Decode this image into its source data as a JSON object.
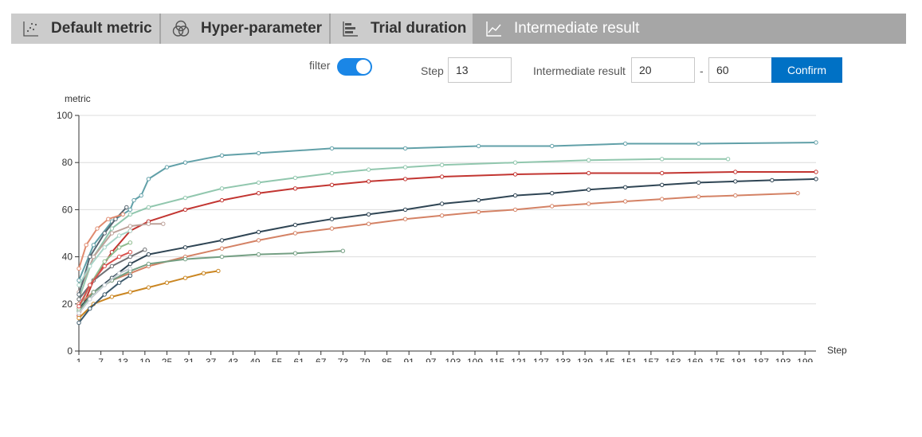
{
  "tabs": [
    {
      "label": "Default metric",
      "icon": "scatter-icon",
      "active": false
    },
    {
      "label": "Hyper-parameter",
      "icon": "circles-icon",
      "active": false
    },
    {
      "label": "Trial duration",
      "icon": "bars-icon",
      "active": false
    },
    {
      "label": "Intermediate result",
      "icon": "line-chart-icon",
      "active": true
    }
  ],
  "controls": {
    "filter_label": "filter",
    "filter_on": true,
    "step_label": "Step",
    "step_value": "13",
    "range_label": "Intermediate result",
    "range_min": "20",
    "range_sep": "-",
    "range_max": "60",
    "confirm_label": "Confirm"
  },
  "colors": {
    "accent": "#1a86e6",
    "confirm": "#0071c5",
    "tab_inactive": "#cccccc",
    "tab_active": "#a6a6a6"
  },
  "chart_data": {
    "type": "line",
    "ylabel": "metric",
    "xlabel": "Step",
    "xlim": [
      1,
      202
    ],
    "ylim": [
      0,
      100
    ],
    "yticks": [
      0,
      20,
      40,
      60,
      80,
      100
    ],
    "xticks": [
      1,
      7,
      13,
      19,
      25,
      31,
      37,
      43,
      49,
      55,
      61,
      67,
      73,
      79,
      85,
      91,
      97,
      103,
      109,
      115,
      121,
      127,
      133,
      139,
      145,
      151,
      157,
      163,
      169,
      175,
      181,
      187,
      193,
      199
    ],
    "grid": true,
    "series": [
      {
        "color": "#61a0a8",
        "points": [
          [
            1,
            30
          ],
          [
            5,
            45
          ],
          [
            10,
            55
          ],
          [
            15,
            60
          ],
          [
            16,
            64
          ],
          [
            18,
            66
          ],
          [
            20,
            73
          ],
          [
            25,
            78
          ],
          [
            30,
            80
          ],
          [
            40,
            83
          ],
          [
            50,
            84
          ],
          [
            70,
            86
          ],
          [
            90,
            86
          ],
          [
            110,
            87
          ],
          [
            130,
            87
          ],
          [
            150,
            88
          ],
          [
            170,
            88
          ],
          [
            202,
            88.5
          ]
        ]
      },
      {
        "color": "#91c7ae",
        "points": [
          [
            1,
            22
          ],
          [
            5,
            40
          ],
          [
            10,
            52
          ],
          [
            15,
            58
          ],
          [
            20,
            61
          ],
          [
            30,
            65
          ],
          [
            40,
            69
          ],
          [
            50,
            71.5
          ],
          [
            60,
            73.5
          ],
          [
            70,
            75.5
          ],
          [
            80,
            77
          ],
          [
            90,
            78
          ],
          [
            100,
            79
          ],
          [
            120,
            80
          ],
          [
            140,
            81
          ],
          [
            160,
            81.5
          ],
          [
            178,
            81.5
          ]
        ]
      },
      {
        "color": "#c23531",
        "points": [
          [
            1,
            15
          ],
          [
            5,
            30
          ],
          [
            10,
            42
          ],
          [
            15,
            51
          ],
          [
            20,
            55
          ],
          [
            30,
            60
          ],
          [
            40,
            64
          ],
          [
            50,
            67
          ],
          [
            60,
            69
          ],
          [
            70,
            70.5
          ],
          [
            80,
            72
          ],
          [
            90,
            73
          ],
          [
            100,
            74
          ],
          [
            120,
            75
          ],
          [
            140,
            75.5
          ],
          [
            160,
            75.5
          ],
          [
            180,
            76
          ],
          [
            202,
            76
          ]
        ]
      },
      {
        "color": "#2f4554",
        "points": [
          [
            1,
            18
          ],
          [
            5,
            25
          ],
          [
            10,
            31
          ],
          [
            15,
            37
          ],
          [
            20,
            41
          ],
          [
            30,
            44
          ],
          [
            40,
            47
          ],
          [
            50,
            50.5
          ],
          [
            60,
            53.5
          ],
          [
            70,
            56
          ],
          [
            80,
            58
          ],
          [
            90,
            60
          ],
          [
            100,
            62.5
          ],
          [
            110,
            64
          ],
          [
            120,
            66
          ],
          [
            130,
            67
          ],
          [
            140,
            68.5
          ],
          [
            150,
            69.5
          ],
          [
            160,
            70.5
          ],
          [
            170,
            71.5
          ],
          [
            180,
            72
          ],
          [
            190,
            72.5
          ],
          [
            202,
            73
          ]
        ]
      },
      {
        "color": "#d48265",
        "points": [
          [
            1,
            20
          ],
          [
            5,
            25
          ],
          [
            10,
            30
          ],
          [
            15,
            33
          ],
          [
            20,
            36
          ],
          [
            30,
            40
          ],
          [
            40,
            43.5
          ],
          [
            50,
            47
          ],
          [
            60,
            50
          ],
          [
            70,
            52
          ],
          [
            80,
            54
          ],
          [
            90,
            56
          ],
          [
            100,
            57.5
          ],
          [
            110,
            59
          ],
          [
            120,
            60
          ],
          [
            130,
            61.5
          ],
          [
            140,
            62.5
          ],
          [
            150,
            63.5
          ],
          [
            160,
            64.5
          ],
          [
            170,
            65.5
          ],
          [
            180,
            66
          ],
          [
            197,
            67
          ]
        ]
      },
      {
        "color": "#749f83",
        "points": [
          [
            1,
            17
          ],
          [
            5,
            25
          ],
          [
            10,
            30
          ],
          [
            15,
            34
          ],
          [
            20,
            37
          ],
          [
            30,
            39
          ],
          [
            40,
            40
          ],
          [
            50,
            41
          ],
          [
            60,
            41.5
          ],
          [
            73,
            42.5
          ]
        ]
      },
      {
        "color": "#ca8622",
        "points": [
          [
            1,
            14
          ],
          [
            5,
            20
          ],
          [
            10,
            23
          ],
          [
            15,
            25
          ],
          [
            20,
            27
          ],
          [
            25,
            29
          ],
          [
            30,
            31
          ],
          [
            35,
            33
          ],
          [
            39,
            34
          ]
        ]
      },
      {
        "color": "#bda29a",
        "points": [
          [
            1,
            25
          ],
          [
            5,
            40
          ],
          [
            10,
            50
          ],
          [
            15,
            53
          ],
          [
            20,
            54
          ],
          [
            24,
            54
          ]
        ]
      },
      {
        "color": "#6e7074",
        "points": [
          [
            1,
            22
          ],
          [
            5,
            30
          ],
          [
            10,
            36
          ],
          [
            15,
            40
          ],
          [
            19,
            43
          ]
        ]
      },
      {
        "color": "#546570",
        "points": [
          [
            1,
            24
          ],
          [
            4,
            40
          ],
          [
            8,
            50
          ],
          [
            11,
            56
          ],
          [
            14,
            61
          ]
        ]
      },
      {
        "color": "#c4ccd3",
        "points": [
          [
            1,
            16
          ],
          [
            4,
            22
          ],
          [
            8,
            28
          ],
          [
            12,
            33
          ],
          [
            15,
            35
          ]
        ]
      },
      {
        "color": "#e08b6f",
        "points": [
          [
            1,
            35
          ],
          [
            3,
            45
          ],
          [
            6,
            52
          ],
          [
            9,
            56
          ],
          [
            13,
            58
          ]
        ]
      },
      {
        "color": "#8fbc8f",
        "points": [
          [
            1,
            18
          ],
          [
            4,
            28
          ],
          [
            8,
            38
          ],
          [
            12,
            44
          ],
          [
            15,
            46
          ]
        ]
      },
      {
        "color": "#d9534f",
        "points": [
          [
            1,
            19
          ],
          [
            4,
            28
          ],
          [
            8,
            36
          ],
          [
            12,
            40
          ],
          [
            15,
            42
          ]
        ]
      },
      {
        "color": "#3d5a6c",
        "points": [
          [
            1,
            12
          ],
          [
            4,
            18
          ],
          [
            8,
            24
          ],
          [
            12,
            29
          ],
          [
            15,
            32
          ]
        ]
      },
      {
        "color": "#a8d5c8",
        "points": [
          [
            1,
            28
          ],
          [
            4,
            36
          ],
          [
            8,
            44
          ],
          [
            12,
            49
          ],
          [
            15,
            51
          ]
        ]
      }
    ]
  }
}
